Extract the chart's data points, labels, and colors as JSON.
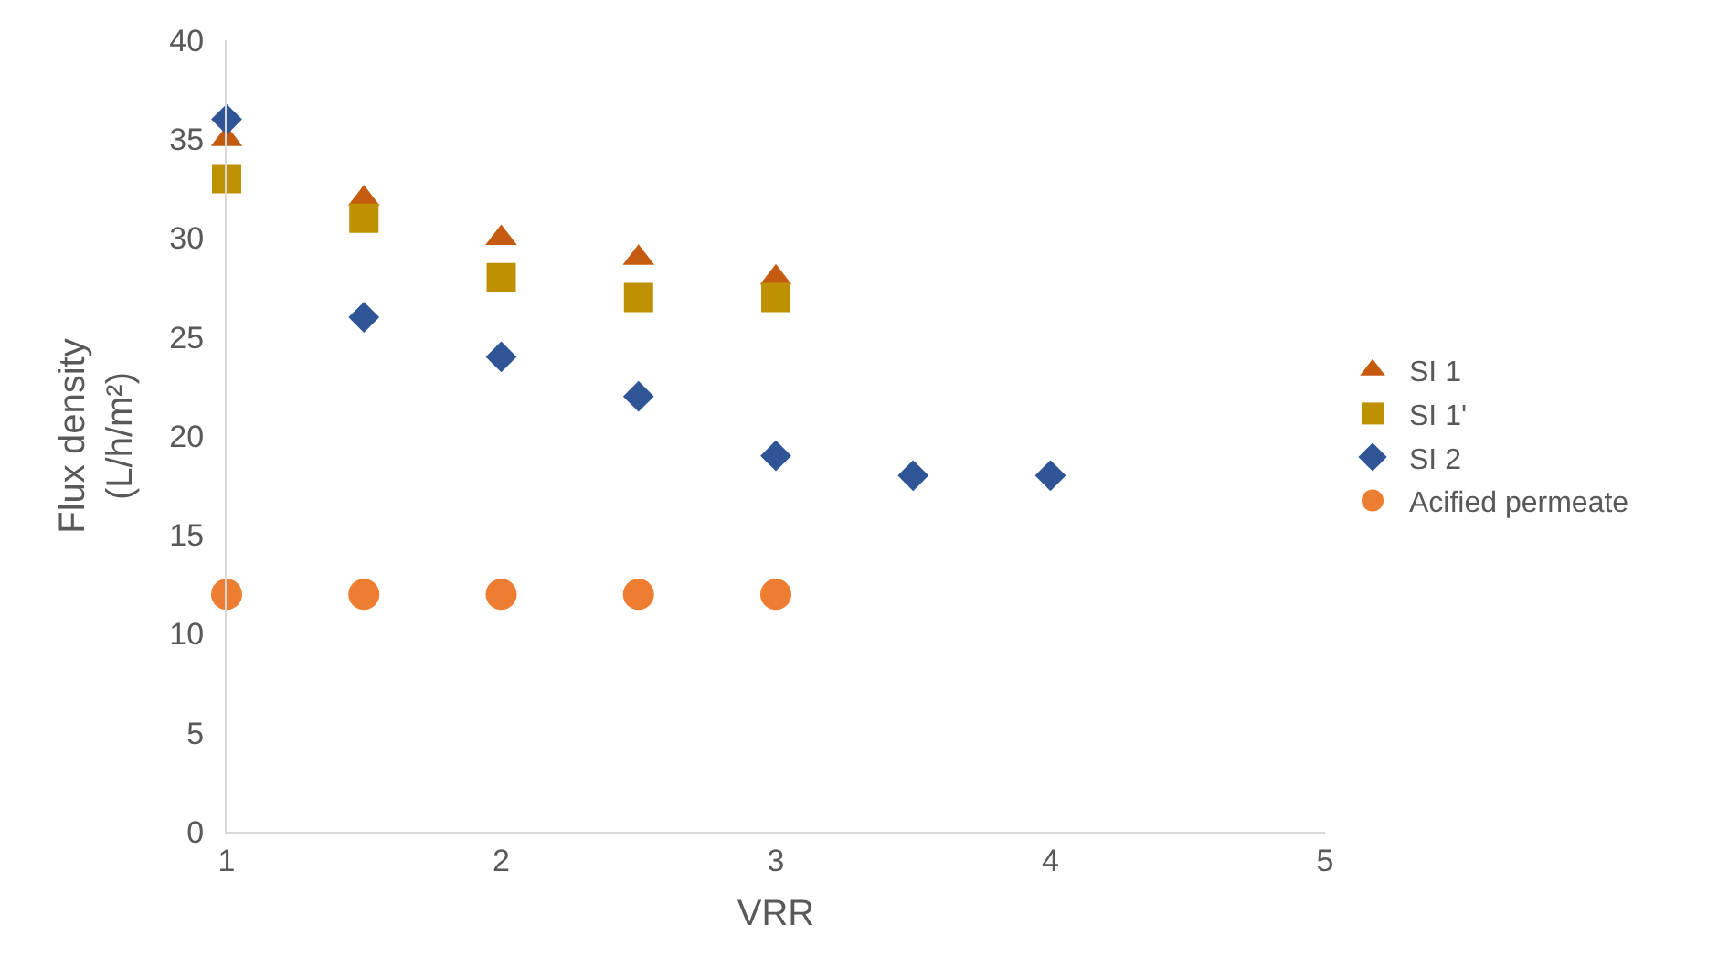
{
  "chart_data": {
    "type": "scatter",
    "xlabel": "VRR",
    "ylabel": "Flux density\n(L/h/m²)",
    "xlim": [
      1,
      5
    ],
    "xticks": [
      1,
      2,
      3,
      4,
      5
    ],
    "ylim": [
      0,
      40
    ],
    "yticks": [
      0,
      5,
      10,
      15,
      20,
      25,
      30,
      35,
      40
    ],
    "grid": false,
    "legend": "right",
    "series": [
      {
        "name": "SI 1",
        "color": "#c55a11",
        "marker": "triangle",
        "x": [
          1,
          1.5,
          2,
          2.5,
          3
        ],
        "values": [
          35,
          32,
          30,
          29,
          28
        ]
      },
      {
        "name": "SI 1'",
        "color": "#bf9000",
        "marker": "square",
        "x": [
          1,
          1.5,
          2,
          2.5,
          3
        ],
        "values": [
          33,
          31,
          28,
          27,
          27
        ]
      },
      {
        "name": "SI 2",
        "color": "#2f5597",
        "marker": "diamond",
        "x": [
          1,
          1.5,
          2,
          2.5,
          3,
          3.5,
          4
        ],
        "values": [
          36,
          26,
          24,
          22,
          19,
          18,
          18
        ]
      },
      {
        "name": "Acified permeate",
        "color": "#ed7d31",
        "marker": "circle",
        "x": [
          1,
          1.5,
          2,
          2.5,
          3
        ],
        "values": [
          12,
          12,
          12,
          12,
          12
        ]
      }
    ]
  }
}
